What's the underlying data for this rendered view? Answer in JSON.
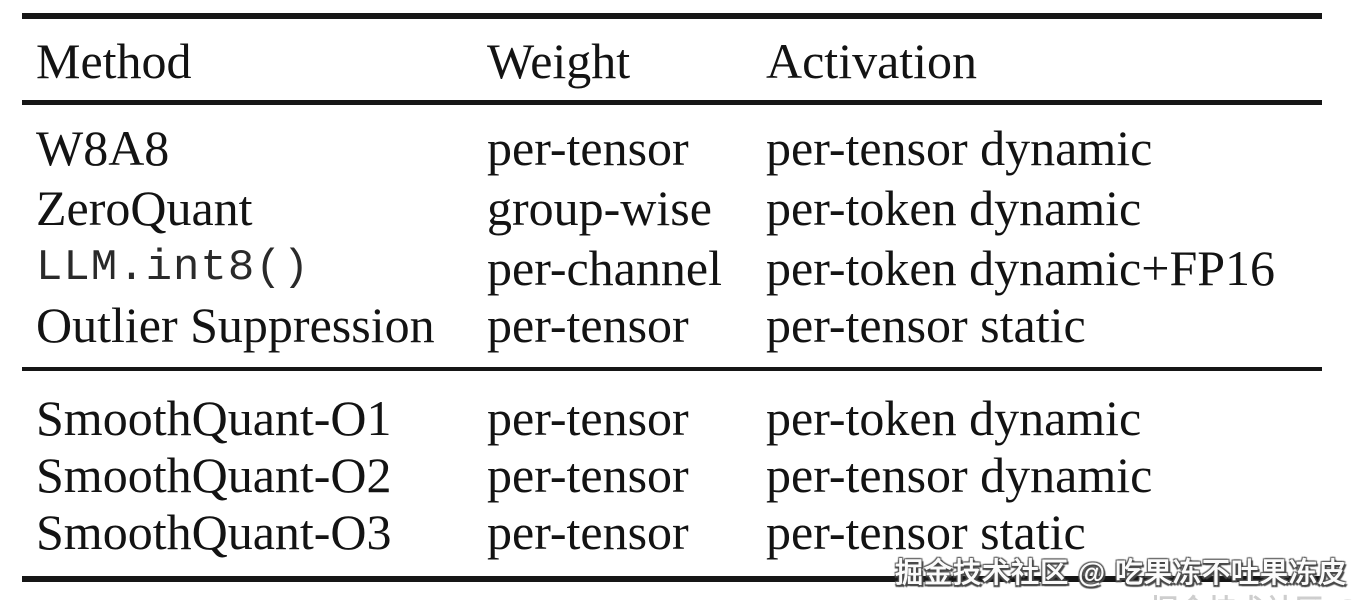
{
  "table": {
    "headers": [
      "Method",
      "Weight",
      "Activation"
    ],
    "rows": [
      {
        "method": "W8A8",
        "weight": "per-tensor",
        "activation": "per-tensor dynamic"
      },
      {
        "method": "ZeroQuant",
        "weight": "group-wise",
        "activation": "per-token dynamic"
      },
      {
        "method": "LLM.int8()",
        "weight": "per-channel",
        "activation": "per-token dynamic+FP16"
      },
      {
        "method": "Outlier Suppression",
        "weight": "per-tensor",
        "activation": "per-tensor static"
      },
      {
        "method": "SmoothQuant-O1",
        "weight": "per-tensor",
        "activation": "per-token dynamic"
      },
      {
        "method": "SmoothQuant-O2",
        "weight": "per-tensor",
        "activation": "per-tensor dynamic"
      },
      {
        "method": "SmoothQuant-O3",
        "weight": "per-tensor",
        "activation": "per-tensor static"
      }
    ]
  },
  "watermark": {
    "text": "掘金技术社区 @ 吃果冻不吐果冻皮"
  },
  "colors": {
    "background": "#ffffff",
    "text": "#131313",
    "rule": "#161616",
    "watermark_fill": "#fbfbfb",
    "watermark_outline": "#474747"
  }
}
